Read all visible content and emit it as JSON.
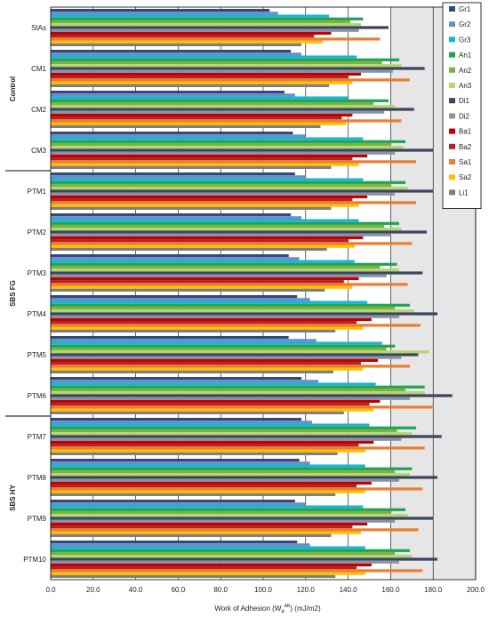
{
  "chart_data": {
    "type": "bar",
    "orientation": "horizontal",
    "xlabel_prefix": "Work of Adhesion (W",
    "xlabel_sub": "a",
    "xlabel_sup": "AB",
    "xlabel_suffix": ") (mJ/m2)",
    "xlim": [
      0,
      200
    ],
    "xticks": [
      "0.0",
      "20.0",
      "40.0",
      "60.0",
      "80.0",
      "100.0",
      "120.0",
      "140.0",
      "160.0",
      "180.0",
      "200.0"
    ],
    "grid": true,
    "legend_position": "top-right",
    "groups": [
      {
        "label": "Control",
        "categories": [
          "StAs",
          "CM1",
          "CM2",
          "CM3"
        ]
      },
      {
        "label": "SBS FG",
        "categories": [
          "PTM1",
          "PTM2",
          "PTM3",
          "PTM4",
          "PTM5",
          "PTM6"
        ]
      },
      {
        "label": "SBS HY",
        "categories": [
          "PTM7",
          "PTM8",
          "PTM9",
          "PTM10"
        ]
      }
    ],
    "categories": [
      "StAs",
      "CM1",
      "CM2",
      "CM3",
      "PTM1",
      "PTM2",
      "PTM3",
      "PTM4",
      "PTM5",
      "PTM6",
      "PTM7",
      "PTM8",
      "PTM9",
      "PTM10"
    ],
    "series": [
      {
        "name": "Gr1",
        "color": "#2f4b7c",
        "values": [
          103,
          113,
          110,
          114,
          115,
          113,
          112,
          116,
          112,
          118,
          118,
          117,
          115,
          116
        ]
      },
      {
        "name": "Gr2",
        "color": "#6a8fc7",
        "values": [
          107,
          118,
          115,
          120,
          120,
          118,
          117,
          122,
          125,
          126,
          123,
          122,
          120,
          122
        ]
      },
      {
        "name": "Gr3",
        "color": "#17b5d8",
        "values": [
          131,
          144,
          140,
          147,
          147,
          145,
          143,
          149,
          156,
          153,
          150,
          148,
          147,
          148
        ]
      },
      {
        "name": "An1",
        "color": "#1fa454",
        "values": [
          147,
          164,
          159,
          167,
          167,
          164,
          163,
          169,
          162,
          176,
          172,
          170,
          167,
          169
        ]
      },
      {
        "name": "An2",
        "color": "#7bb342",
        "values": [
          141,
          156,
          152,
          160,
          160,
          157,
          155,
          162,
          158,
          167,
          163,
          162,
          160,
          162
        ]
      },
      {
        "name": "An3",
        "color": "#b3d66e",
        "values": [
          146,
          165,
          162,
          166,
          168,
          165,
          164,
          171,
          178,
          176,
          170,
          169,
          168,
          170
        ]
      },
      {
        "name": "Di1",
        "color": "#3b4560",
        "values": [
          159,
          176,
          171,
          180,
          180,
          177,
          175,
          182,
          173,
          189,
          184,
          182,
          180,
          182
        ]
      },
      {
        "name": "Di2",
        "color": "#8a93a6",
        "values": [
          145,
          161,
          157,
          162,
          162,
          160,
          158,
          164,
          165,
          169,
          165,
          164,
          162,
          164
        ]
      },
      {
        "name": "Ba1",
        "color": "#c00000",
        "values": [
          132,
          146,
          142,
          149,
          149,
          147,
          145,
          151,
          154,
          155,
          152,
          151,
          149,
          151
        ]
      },
      {
        "name": "Ba2",
        "color": "#b22222",
        "values": [
          124,
          140,
          137,
          142,
          142,
          140,
          138,
          144,
          146,
          150,
          145,
          144,
          142,
          144
        ]
      },
      {
        "name": "Sa1",
        "color": "#ed7d31",
        "values": [
          155,
          169,
          165,
          172,
          172,
          170,
          168,
          174,
          169,
          180,
          176,
          175,
          173,
          175
        ]
      },
      {
        "name": "Sa2",
        "color": "#ffc000",
        "values": [
          128,
          142,
          139,
          145,
          145,
          143,
          142,
          147,
          147,
          152,
          148,
          148,
          146,
          148
        ]
      },
      {
        "name": "Li1",
        "color": "#7f7f7f",
        "values": [
          118,
          131,
          127,
          132,
          132,
          130,
          129,
          134,
          133,
          138,
          135,
          134,
          132,
          134
        ]
      }
    ]
  }
}
